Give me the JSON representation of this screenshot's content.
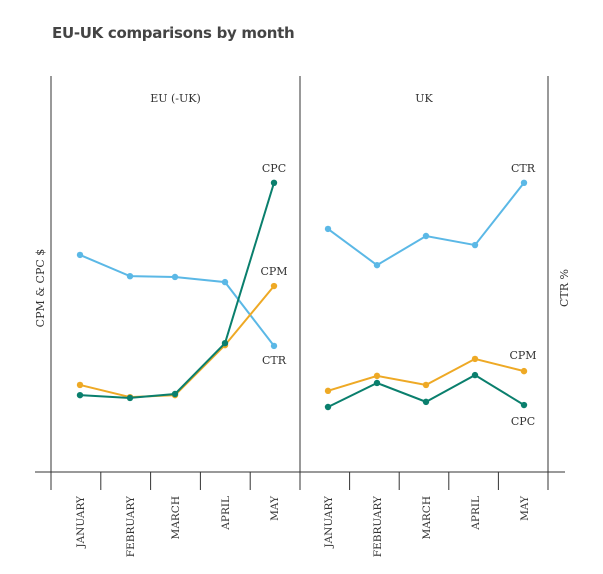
{
  "chart_data": {
    "type": "line",
    "title": "EU-UK comparisons by month",
    "ylabel_left": "CPM & CPC $",
    "ylabel_right": "CTR %",
    "categories": [
      "JANUARY",
      "FEBRUARY",
      "MARCH",
      "APRIL",
      "MAY"
    ],
    "ylim": [
      0,
      100
    ],
    "note": "No tick values shown; values are relative (0-100 scale of plot height)",
    "colors": {
      "CTR": "#5bb8e6",
      "CPM": "#eea925",
      "CPC": "#0a7f6d"
    },
    "panels": [
      {
        "name": "EU (-UK)",
        "series": [
          {
            "name": "CTR",
            "values": [
              55.1,
              49.7,
              49.5,
              48.2,
              32.0
            ]
          },
          {
            "name": "CPM",
            "values": [
              22.1,
              19.0,
              19.5,
              32.2,
              47.2
            ]
          },
          {
            "name": "CPC",
            "values": [
              19.5,
              18.8,
              19.8,
              32.7,
              73.4
            ]
          }
        ]
      },
      {
        "name": "UK",
        "series": [
          {
            "name": "CTR",
            "values": [
              61.7,
              52.5,
              59.9,
              57.6,
              73.4
            ]
          },
          {
            "name": "CPM",
            "values": [
              20.6,
              24.4,
              22.1,
              28.7,
              25.6
            ]
          },
          {
            "name": "CPC",
            "values": [
              16.5,
              22.6,
              17.8,
              24.6,
              17.0
            ]
          }
        ]
      }
    ]
  }
}
